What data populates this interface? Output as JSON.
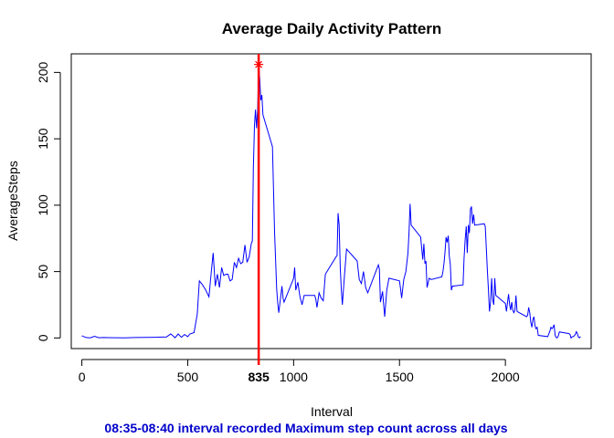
{
  "chart_data": {
    "type": "line",
    "title": "Average Daily Activity Pattern",
    "xlabel": "Interval",
    "ylabel": "AverageSteps",
    "xlim": [
      -50,
      2405
    ],
    "ylim": [
      -8,
      214
    ],
    "x_ticks": [
      0,
      500,
      1000,
      1500,
      2000
    ],
    "y_ticks": [
      0,
      50,
      100,
      150,
      200
    ],
    "grid": false,
    "legend": "none",
    "series": [
      {
        "color": "#0000ff",
        "points": [
          [
            0,
            1.7
          ],
          [
            20,
            0.3
          ],
          [
            40,
            0.1
          ],
          [
            60,
            1.3
          ],
          [
            80,
            0.2
          ],
          [
            100,
            0.3
          ],
          [
            150,
            0.2
          ],
          [
            200,
            0.1
          ],
          [
            250,
            0.3
          ],
          [
            300,
            0.4
          ],
          [
            350,
            0.5
          ],
          [
            400,
            0.8
          ],
          [
            420,
            3.1
          ],
          [
            440,
            0.2
          ],
          [
            455,
            3.0
          ],
          [
            470,
            0.5
          ],
          [
            485,
            2.6
          ],
          [
            500,
            1.0
          ],
          [
            510,
            3.0
          ],
          [
            530,
            4.0
          ],
          [
            545,
            18
          ],
          [
            555,
            43
          ],
          [
            570,
            40
          ],
          [
            585,
            36
          ],
          [
            600,
            31
          ],
          [
            610,
            48
          ],
          [
            620,
            64
          ],
          [
            630,
            39
          ],
          [
            640,
            48
          ],
          [
            650,
            38
          ],
          [
            660,
            53
          ],
          [
            670,
            47
          ],
          [
            680,
            48
          ],
          [
            690,
            48
          ],
          [
            700,
            43
          ],
          [
            710,
            44
          ],
          [
            720,
            57
          ],
          [
            730,
            53
          ],
          [
            740,
            60
          ],
          [
            750,
            56
          ],
          [
            760,
            57
          ],
          [
            770,
            70
          ],
          [
            780,
            57
          ],
          [
            790,
            61
          ],
          [
            800,
            71
          ],
          [
            805,
            73
          ],
          [
            810,
            128
          ],
          [
            815,
            160
          ],
          [
            820,
            172
          ],
          [
            825,
            158
          ],
          [
            830,
            172
          ],
          [
            835,
            206
          ],
          [
            840,
            195
          ],
          [
            845,
            179
          ],
          [
            850,
            183
          ],
          [
            855,
            168
          ],
          [
            900,
            144
          ],
          [
            910,
            80
          ],
          [
            920,
            37
          ],
          [
            925,
            26
          ],
          [
            930,
            19
          ],
          [
            945,
            39
          ],
          [
            950,
            30
          ],
          [
            955,
            27
          ],
          [
            1000,
            45
          ],
          [
            1005,
            53
          ],
          [
            1010,
            36
          ],
          [
            1020,
            42
          ],
          [
            1030,
            31
          ],
          [
            1040,
            25
          ],
          [
            1050,
            32
          ],
          [
            1100,
            32
          ],
          [
            1105,
            29
          ],
          [
            1110,
            23
          ],
          [
            1120,
            34
          ],
          [
            1130,
            30
          ],
          [
            1140,
            28
          ],
          [
            1150,
            48
          ],
          [
            1200,
            61
          ],
          [
            1205,
            62
          ],
          [
            1210,
            94
          ],
          [
            1215,
            85
          ],
          [
            1220,
            53
          ],
          [
            1225,
            37
          ],
          [
            1230,
            25
          ],
          [
            1240,
            47
          ],
          [
            1250,
            67
          ],
          [
            1300,
            58
          ],
          [
            1310,
            44
          ],
          [
            1320,
            41
          ],
          [
            1330,
            50
          ],
          [
            1340,
            38
          ],
          [
            1350,
            34
          ],
          [
            1400,
            55
          ],
          [
            1405,
            52
          ],
          [
            1410,
            27
          ],
          [
            1420,
            35
          ],
          [
            1430,
            16
          ],
          [
            1440,
            36
          ],
          [
            1450,
            45
          ],
          [
            1500,
            43
          ],
          [
            1505,
            37
          ],
          [
            1510,
            30
          ],
          [
            1520,
            44
          ],
          [
            1530,
            50
          ],
          [
            1540,
            64
          ],
          [
            1545,
            80
          ],
          [
            1550,
            101
          ],
          [
            1555,
            85
          ],
          [
            1600,
            76
          ],
          [
            1610,
            59
          ],
          [
            1615,
            71
          ],
          [
            1620,
            56
          ],
          [
            1625,
            58
          ],
          [
            1630,
            38
          ],
          [
            1640,
            45
          ],
          [
            1650,
            44
          ],
          [
            1700,
            46
          ],
          [
            1705,
            50
          ],
          [
            1710,
            56
          ],
          [
            1715,
            65
          ],
          [
            1720,
            76
          ],
          [
            1725,
            72
          ],
          [
            1730,
            77
          ],
          [
            1735,
            62
          ],
          [
            1740,
            55
          ],
          [
            1745,
            36
          ],
          [
            1750,
            39
          ],
          [
            1800,
            40
          ],
          [
            1805,
            60
          ],
          [
            1810,
            74
          ],
          [
            1815,
            84
          ],
          [
            1820,
            64
          ],
          [
            1825,
            85
          ],
          [
            1830,
            79
          ],
          [
            1835,
            97
          ],
          [
            1840,
            99
          ],
          [
            1845,
            86
          ],
          [
            1850,
            93
          ],
          [
            1855,
            85
          ],
          [
            1900,
            86
          ],
          [
            1905,
            84
          ],
          [
            1910,
            67
          ],
          [
            1915,
            51
          ],
          [
            1920,
            36
          ],
          [
            1925,
            20
          ],
          [
            1930,
            27
          ],
          [
            1935,
            45
          ],
          [
            1940,
            29
          ],
          [
            1945,
            25
          ],
          [
            1950,
            45
          ],
          [
            1955,
            32
          ],
          [
            2000,
            26
          ],
          [
            2005,
            20
          ],
          [
            2010,
            27
          ],
          [
            2015,
            33
          ],
          [
            2020,
            25
          ],
          [
            2025,
            21
          ],
          [
            2030,
            27
          ],
          [
            2035,
            21
          ],
          [
            2040,
            19
          ],
          [
            2045,
            21
          ],
          [
            2050,
            32
          ],
          [
            2055,
            20
          ],
          [
            2100,
            16
          ],
          [
            2105,
            17
          ],
          [
            2110,
            23
          ],
          [
            2115,
            19
          ],
          [
            2120,
            12
          ],
          [
            2125,
            8
          ],
          [
            2130,
            14
          ],
          [
            2135,
            16
          ],
          [
            2140,
            9
          ],
          [
            2145,
            7
          ],
          [
            2150,
            8
          ],
          [
            2155,
            2
          ],
          [
            2200,
            1
          ],
          [
            2205,
            3
          ],
          [
            2210,
            5
          ],
          [
            2215,
            8
          ],
          [
            2220,
            7
          ],
          [
            2225,
            8
          ],
          [
            2230,
            10
          ],
          [
            2235,
            2
          ],
          [
            2240,
            0.3
          ],
          [
            2245,
            0.1
          ],
          [
            2250,
            1.6
          ],
          [
            2255,
            4.6
          ],
          [
            2300,
            3.3
          ],
          [
            2305,
            2.8
          ],
          [
            2310,
            0
          ],
          [
            2315,
            0.8
          ],
          [
            2320,
            1
          ],
          [
            2325,
            1.6
          ],
          [
            2330,
            2.6
          ],
          [
            2335,
            4.7
          ],
          [
            2340,
            3.3
          ],
          [
            2345,
            0.6
          ],
          [
            2350,
            0.2
          ],
          [
            2355,
            1.1
          ]
        ]
      }
    ],
    "max_marker": {
      "x": 835,
      "y": 206,
      "label": "835",
      "marker_color": "#ff0000",
      "line_color": "#ff0000"
    },
    "note": "08:35-08:40 interval recorded Maximum step count across all days",
    "note_color": "#0000cc"
  }
}
